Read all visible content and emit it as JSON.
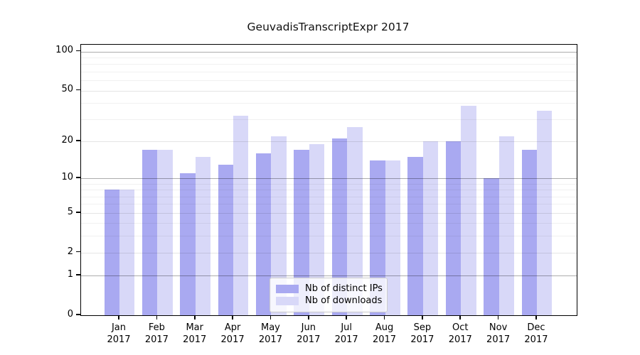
{
  "chart_data": {
    "type": "bar",
    "title": "GeuvadisTranscriptExpr 2017",
    "categories": [
      "Jan 2017",
      "Feb 2017",
      "Mar 2017",
      "Apr 2017",
      "May 2017",
      "Jun 2017",
      "Jul 2017",
      "Aug 2017",
      "Sep 2017",
      "Oct 2017",
      "Nov 2017",
      "Dec 2017"
    ],
    "months": [
      "Jan",
      "Feb",
      "Mar",
      "Apr",
      "May",
      "Jun",
      "Jul",
      "Aug",
      "Sep",
      "Oct",
      "Nov",
      "Dec"
    ],
    "year_label": "2017",
    "series": [
      {
        "name": "Nb of distinct IPs",
        "color": "#a9a9f1",
        "values": [
          8,
          17,
          11,
          13,
          16,
          17,
          21,
          14,
          15,
          20,
          10,
          17
        ]
      },
      {
        "name": "Nb of downloads",
        "color": "#d8d8f8",
        "values": [
          8,
          17,
          15,
          32,
          22,
          19,
          26,
          14,
          20,
          38,
          22,
          35
        ]
      }
    ],
    "y_scale": "log1p",
    "ylim": [
      0,
      112
    ],
    "y_tick_values": [
      0,
      1,
      2,
      5,
      10,
      20,
      50,
      100
    ],
    "y_decade_gridlines": [
      1,
      10,
      100
    ],
    "y_labeled_gridlines": [
      2,
      5,
      20,
      50
    ],
    "y_minor_gridlines": [
      3,
      4,
      6,
      7,
      8,
      9,
      30,
      40,
      60,
      70,
      80,
      90
    ],
    "grid": "on",
    "legend_position": "lower center",
    "xlabel": "",
    "ylabel": ""
  },
  "legend": {
    "items": [
      {
        "label": "Nb of distinct IPs",
        "color": "#a9a9f1"
      },
      {
        "label": "Nb of downloads",
        "color": "#d8d8f8"
      }
    ]
  },
  "colors": {
    "spine": "#000000",
    "background": "#ffffff",
    "gridline_minor": "rgba(0,0,0,0.055)",
    "gridline_labeled": "rgba(0,0,0,0.10)",
    "gridline_decade": "rgba(0,0,0,0.32)"
  }
}
